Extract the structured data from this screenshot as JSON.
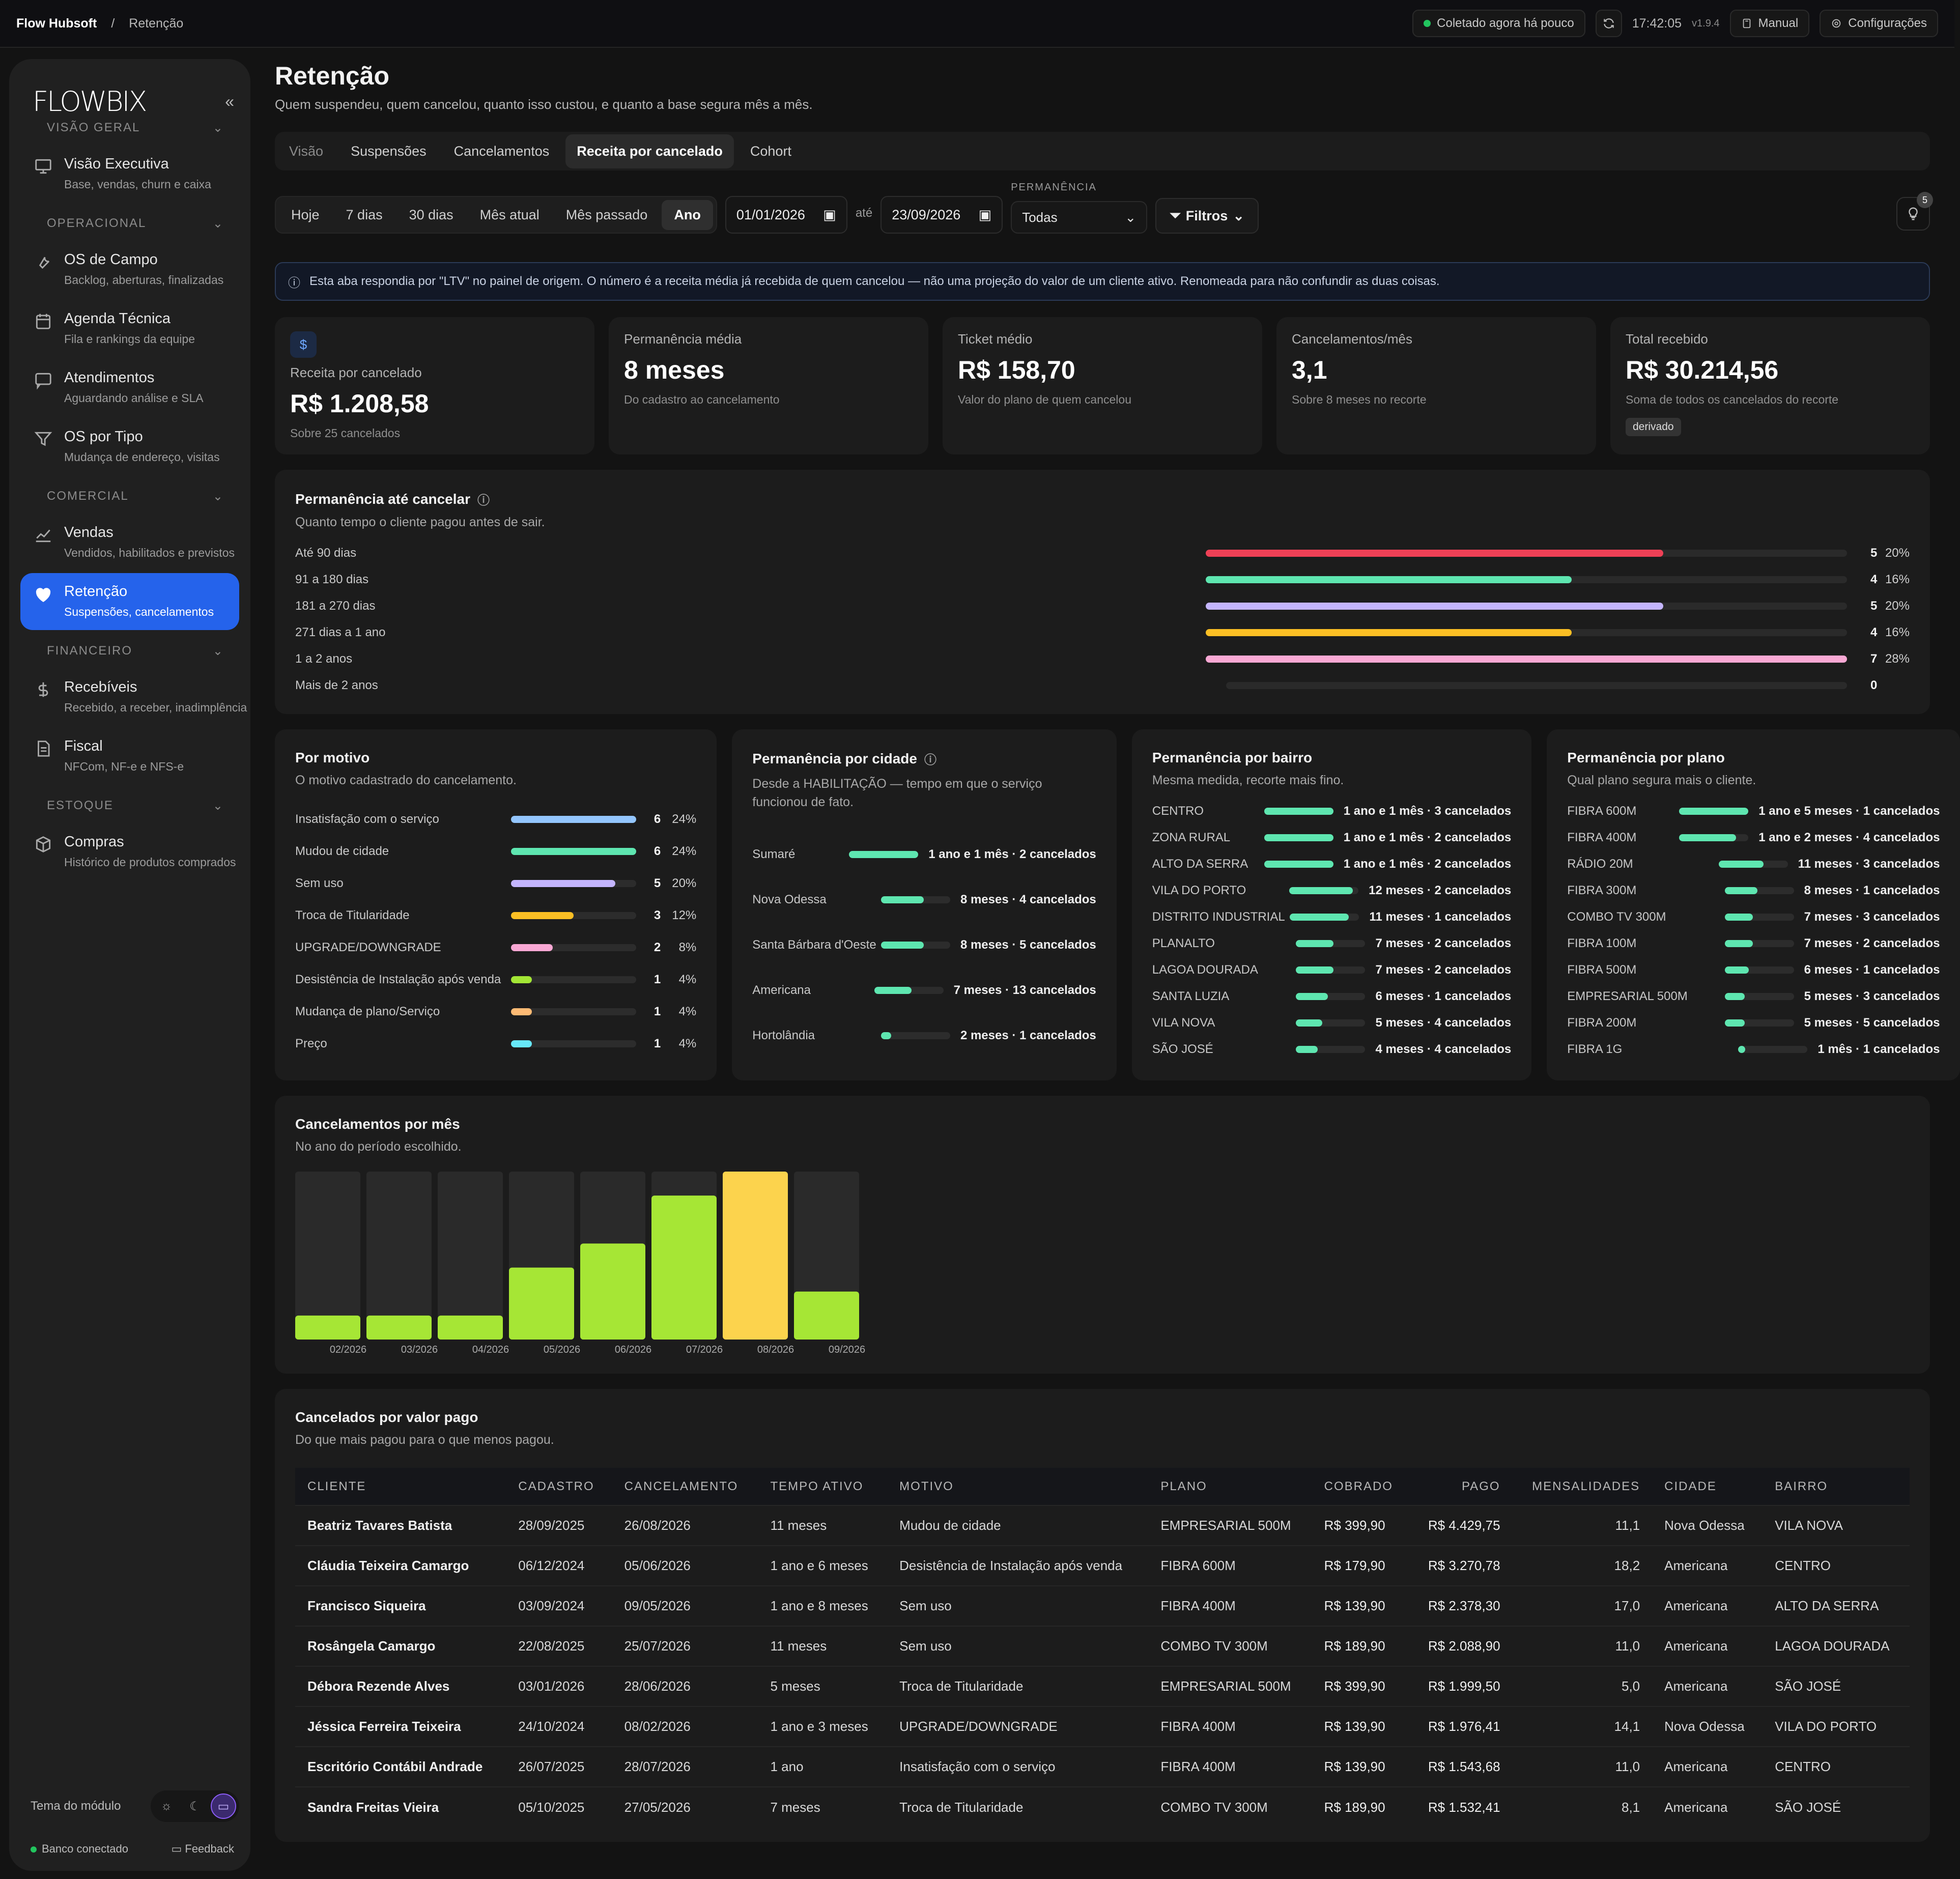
{
  "topbar": {
    "app": "Flow Hubsoft",
    "sep": "/",
    "page": "Retenção",
    "status": "Coletado agora há pouco",
    "time": "17:42:05",
    "version": "v1.9.4",
    "manual": "Manual",
    "settings": "Configurações"
  },
  "sidebar": {
    "logo": "FLOWBIX",
    "sections": [
      {
        "title": "VISÃO GERAL",
        "items": [
          {
            "icon": "presentation-icon",
            "label": "Visão Executiva",
            "sub": "Base, vendas, churn e caixa",
            "active": false
          }
        ]
      },
      {
        "title": "OPERACIONAL",
        "items": [
          {
            "icon": "wrench-icon",
            "label": "OS de Campo",
            "sub": "Backlog, aberturas, finalizadas",
            "active": false
          },
          {
            "icon": "calendar-icon",
            "label": "Agenda Técnica",
            "sub": "Fila e rankings da equipe",
            "active": false
          },
          {
            "icon": "chat-icon",
            "label": "Atendimentos",
            "sub": "Aguardando análise e SLA",
            "active": false
          },
          {
            "icon": "filter-icon",
            "label": "OS por Tipo",
            "sub": "Mudança de endereço, visitas",
            "active": false
          }
        ]
      },
      {
        "title": "COMERCIAL",
        "items": [
          {
            "icon": "chart-line-icon",
            "label": "Vendas",
            "sub": "Vendidos, habilitados e previstos",
            "active": false
          },
          {
            "icon": "heart-icon",
            "label": "Retenção",
            "sub": "Suspensões, cancelamentos",
            "active": true
          }
        ]
      },
      {
        "title": "FINANCEIRO",
        "items": [
          {
            "icon": "dollar-icon",
            "label": "Recebíveis",
            "sub": "Recebido, a receber, inadimplência",
            "active": false
          },
          {
            "icon": "document-icon",
            "label": "Fiscal",
            "sub": "NFCom, NF-e e NFS-e",
            "active": false
          }
        ]
      },
      {
        "title": "ESTOQUE",
        "items": [
          {
            "icon": "box-icon",
            "label": "Compras",
            "sub": "Histórico de produtos comprados",
            "active": false
          }
        ]
      }
    ],
    "theme_label": "Tema do módulo",
    "db_status": "Banco conectado",
    "feedback": "Feedback"
  },
  "main": {
    "title": "Retenção",
    "subtitle": "Quem suspendeu, quem cancelou, quanto isso custou, e quanto a base segura mês a mês.",
    "tabs": [
      "Visão",
      "Suspensões",
      "Cancelamentos",
      "Receita por cancelado",
      "Cohort"
    ],
    "active_tab": "Receita por cancelado",
    "periods": [
      "Hoje",
      "7 dias",
      "30 dias",
      "Mês atual",
      "Mês passado",
      "Ano"
    ],
    "active_period": "Ano",
    "date_from": "01/01/2026",
    "date_sep": "até",
    "date_to": "23/09/2026",
    "permanencia_label": "PERMANÊNCIA",
    "permanencia_value": "Todas",
    "filters_label": "Filtros",
    "insights_count": "5",
    "info_text": "Esta aba respondia por \"LTV\" no painel de origem. O número é a receita média já recebida de quem cancelou — não uma projeção do valor de um cliente ativo. Renomeada para não confundir as duas coisas."
  },
  "kpis": [
    {
      "label": "Receita por cancelado",
      "value": "R$ 1.208,58",
      "sub": "Sobre 25 cancelados",
      "icon": "$"
    },
    {
      "label": "Permanência média",
      "value": "8 meses",
      "sub": "Do cadastro ao cancelamento"
    },
    {
      "label": "Ticket médio",
      "value": "R$ 158,70",
      "sub": "Valor do plano de quem cancelou"
    },
    {
      "label": "Cancelamentos/mês",
      "value": "3,1",
      "sub": "Sobre 8 meses no recorte"
    },
    {
      "label": "Total recebido",
      "value": "R$ 30.214,56",
      "sub": "Soma de todos os cancelados do recorte",
      "tag": "derivado"
    }
  ],
  "permanencia": {
    "title": "Permanência até cancelar",
    "subtitle": "Quanto tempo o cliente pagou antes de sair.",
    "rows": [
      {
        "label": "Até 90 dias",
        "count": "5",
        "pct": "20%",
        "frac": 0.714,
        "color": "#ef4056"
      },
      {
        "label": "91 a 180 dias",
        "count": "4",
        "pct": "16%",
        "frac": 0.571,
        "color": "#5ee6b0"
      },
      {
        "label": "181 a 270 dias",
        "count": "5",
        "pct": "20%",
        "frac": 0.714,
        "color": "#c4b5fd"
      },
      {
        "label": "271 dias a 1 ano",
        "count": "4",
        "pct": "16%",
        "frac": 0.571,
        "color": "#fbbf24"
      },
      {
        "label": "1 a 2 anos",
        "count": "7",
        "pct": "28%",
        "frac": 1.0,
        "color": "#f9a8d4"
      },
      {
        "label": "Mais de 2 anos",
        "count": "0",
        "pct": "",
        "frac": 0,
        "color": "#2a2a2a"
      }
    ]
  },
  "motivo": {
    "title": "Por motivo",
    "subtitle": "O motivo cadastrado do cancelamento.",
    "rows": [
      {
        "label": "Insatisfação com o serviço",
        "count": "6",
        "pct": "24%",
        "frac": 1.0,
        "color": "#93c5fd"
      },
      {
        "label": "Mudou de cidade",
        "count": "6",
        "pct": "24%",
        "frac": 1.0,
        "color": "#5ee6b0"
      },
      {
        "label": "Sem uso",
        "count": "5",
        "pct": "20%",
        "frac": 0.833,
        "color": "#c4b5fd"
      },
      {
        "label": "Troca de Titularidade",
        "count": "3",
        "pct": "12%",
        "frac": 0.5,
        "color": "#fbbf24"
      },
      {
        "label": "UPGRADE/DOWNGRADE",
        "count": "2",
        "pct": "8%",
        "frac": 0.333,
        "color": "#f9a8d4"
      },
      {
        "label": "Desistência de Instalação após venda",
        "count": "1",
        "pct": "4%",
        "frac": 0.167,
        "color": "#a3e635"
      },
      {
        "label": "Mudança de plano/Serviço",
        "count": "1",
        "pct": "4%",
        "frac": 0.167,
        "color": "#fdba74"
      },
      {
        "label": "Preço",
        "count": "1",
        "pct": "4%",
        "frac": 0.167,
        "color": "#67e8f9"
      }
    ]
  },
  "cidade": {
    "title": "Permanência por cidade",
    "subtitle": "Desde a HABILITAÇÃO — tempo em que o serviço funcionou de fato.",
    "rows": [
      {
        "label": "Sumaré",
        "value": "1 ano e 1 mês · 2 cancelados",
        "frac": 1.0
      },
      {
        "label": "Nova Odessa",
        "value": "8 meses · 4 cancelados",
        "frac": 0.62
      },
      {
        "label": "Santa Bárbara d'Oeste",
        "value": "8 meses · 5 cancelados",
        "frac": 0.62
      },
      {
        "label": "Americana",
        "value": "7 meses · 13 cancelados",
        "frac": 0.54
      },
      {
        "label": "Hortolândia",
        "value": "2 meses · 1 cancelados",
        "frac": 0.15
      }
    ]
  },
  "bairro": {
    "title": "Permanência por bairro",
    "subtitle": "Mesma medida, recorte mais fino.",
    "rows": [
      {
        "label": "CENTRO",
        "value": "1 ano e 1 mês · 3 cancelados",
        "frac": 1.0
      },
      {
        "label": "ZONA RURAL",
        "value": "1 ano e 1 mês · 2 cancelados",
        "frac": 1.0
      },
      {
        "label": "ALTO DA SERRA",
        "value": "1 ano e 1 mês · 2 cancelados",
        "frac": 1.0
      },
      {
        "label": "VILA DO PORTO",
        "value": "12 meses · 2 cancelados",
        "frac": 0.92
      },
      {
        "label": "DISTRITO INDUSTRIAL",
        "value": "11 meses · 1 cancelados",
        "frac": 0.85
      },
      {
        "label": "PLANALTO",
        "value": "7 meses · 2 cancelados",
        "frac": 0.54
      },
      {
        "label": "LAGOA DOURADA",
        "value": "7 meses · 2 cancelados",
        "frac": 0.54
      },
      {
        "label": "SANTA LUZIA",
        "value": "6 meses · 1 cancelados",
        "frac": 0.46
      },
      {
        "label": "VILA NOVA",
        "value": "5 meses · 4 cancelados",
        "frac": 0.38
      },
      {
        "label": "SÃO JOSÉ",
        "value": "4 meses · 4 cancelados",
        "frac": 0.31
      }
    ]
  },
  "plano": {
    "title": "Permanência por plano",
    "subtitle": "Qual plano segura mais o cliente.",
    "rows": [
      {
        "label": "FIBRA 600M",
        "value": "1 ano e 5 meses · 1 cancelados",
        "frac": 1.0
      },
      {
        "label": "FIBRA 400M",
        "value": "1 ano e 2 meses · 4 cancelados",
        "frac": 0.82
      },
      {
        "label": "RÁDIO 20M",
        "value": "11 meses · 3 cancelados",
        "frac": 0.65
      },
      {
        "label": "FIBRA 300M",
        "value": "8 meses · 1 cancelados",
        "frac": 0.47
      },
      {
        "label": "COMBO TV 300M",
        "value": "7 meses · 3 cancelados",
        "frac": 0.41
      },
      {
        "label": "FIBRA 100M",
        "value": "7 meses · 2 cancelados",
        "frac": 0.41
      },
      {
        "label": "FIBRA 500M",
        "value": "6 meses · 1 cancelados",
        "frac": 0.35
      },
      {
        "label": "EMPRESARIAL 500M",
        "value": "5 meses · 3 cancelados",
        "frac": 0.29
      },
      {
        "label": "FIBRA 200M",
        "value": "5 meses · 5 cancelados",
        "frac": 0.29
      },
      {
        "label": "FIBRA 1G",
        "value": "1 mês · 1 cancelados",
        "frac": 0.06
      }
    ]
  },
  "cancelamentos_mes": {
    "title": "Cancelamentos por mês",
    "subtitle": "No ano do período escolhido."
  },
  "chart_data": {
    "type": "bar",
    "categories": [
      "02/2026",
      "03/2026",
      "04/2026",
      "05/2026",
      "06/2026",
      "07/2026",
      "08/2026",
      "09/2026"
    ],
    "values": [
      1,
      1,
      1,
      3,
      4,
      6,
      7,
      2
    ],
    "highlight_index": 6,
    "ylim": [
      0,
      7
    ],
    "colors": {
      "bar": "#a6e635",
      "highlight": "#fcd34d",
      "track": "#2a2a2a"
    }
  },
  "tabela": {
    "title": "Cancelados por valor pago",
    "subtitle": "Do que mais pagou para o que menos pagou.",
    "columns": [
      "CLIENTE",
      "CADASTRO",
      "CANCELAMENTO",
      "TEMPO ATIVO",
      "MOTIVO",
      "PLANO",
      "COBRADO",
      "PAGO",
      "MENSALIDADES",
      "CIDADE",
      "BAIRRO"
    ],
    "rows": [
      [
        "Beatriz Tavares Batista",
        "28/09/2025",
        "26/08/2026",
        "11 meses",
        "Mudou de cidade",
        "EMPRESARIAL 500M",
        "R$ 399,90",
        "R$ 4.429,75",
        "11,1",
        "Nova Odessa",
        "VILA NOVA"
      ],
      [
        "Cláudia Teixeira Camargo",
        "06/12/2024",
        "05/06/2026",
        "1 ano e 6 meses",
        "Desistência de Instalação após venda",
        "FIBRA 600M",
        "R$ 179,90",
        "R$ 3.270,78",
        "18,2",
        "Americana",
        "CENTRO"
      ],
      [
        "Francisco Siqueira",
        "03/09/2024",
        "09/05/2026",
        "1 ano e 8 meses",
        "Sem uso",
        "FIBRA 400M",
        "R$ 139,90",
        "R$ 2.378,30",
        "17,0",
        "Americana",
        "ALTO DA SERRA"
      ],
      [
        "Rosângela Camargo",
        "22/08/2025",
        "25/07/2026",
        "11 meses",
        "Sem uso",
        "COMBO TV 300M",
        "R$ 189,90",
        "R$ 2.088,90",
        "11,0",
        "Americana",
        "LAGOA DOURADA"
      ],
      [
        "Débora Rezende Alves",
        "03/01/2026",
        "28/06/2026",
        "5 meses",
        "Troca de Titularidade",
        "EMPRESARIAL 500M",
        "R$ 399,90",
        "R$ 1.999,50",
        "5,0",
        "Americana",
        "SÃO JOSÉ"
      ],
      [
        "Jéssica Ferreira Teixeira",
        "24/10/2024",
        "08/02/2026",
        "1 ano e 3 meses",
        "UPGRADE/DOWNGRADE",
        "FIBRA 400M",
        "R$ 139,90",
        "R$ 1.976,41",
        "14,1",
        "Nova Odessa",
        "VILA DO PORTO"
      ],
      [
        "Escritório Contábil Andrade",
        "26/07/2025",
        "28/07/2026",
        "1 ano",
        "Insatisfação com o serviço",
        "FIBRA 400M",
        "R$ 139,90",
        "R$ 1.543,68",
        "11,0",
        "Americana",
        "CENTRO"
      ],
      [
        "Sandra Freitas Vieira",
        "05/10/2025",
        "27/05/2026",
        "7 meses",
        "Troca de Titularidade",
        "COMBO TV 300M",
        "R$ 189,90",
        "R$ 1.532,41",
        "8,1",
        "Americana",
        "SÃO JOSÉ"
      ]
    ]
  }
}
